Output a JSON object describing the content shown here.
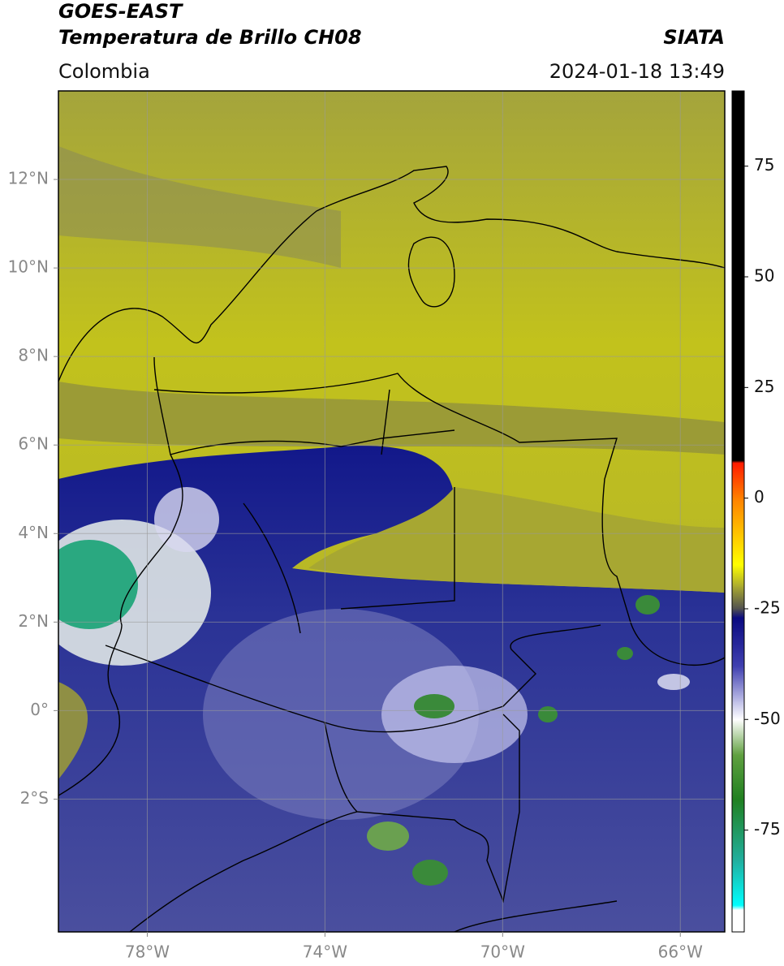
{
  "header": {
    "title": "GOES-EAST",
    "subtitle": "Temperatura de Brillo CH08",
    "source": "SIATA",
    "region": "Colombia",
    "datetime": "2024-01-18 13:49"
  },
  "map": {
    "xlim": [
      -80,
      -65
    ],
    "ylim": [
      -5,
      14
    ],
    "grid": true,
    "xticks": [
      {
        "value": -78,
        "label": "78°W"
      },
      {
        "value": -74,
        "label": "74°W"
      },
      {
        "value": -70,
        "label": "70°W"
      },
      {
        "value": -66,
        "label": "66°W"
      }
    ],
    "yticks": [
      {
        "value": 12,
        "label": "12°N"
      },
      {
        "value": 10,
        "label": "10°N"
      },
      {
        "value": 8,
        "label": "8°N"
      },
      {
        "value": 6,
        "label": "6°N"
      },
      {
        "value": 4,
        "label": "4°N"
      },
      {
        "value": 2,
        "label": "2°N"
      },
      {
        "value": 0,
        "label": "0°"
      },
      {
        "value": -2,
        "label": "2°S"
      }
    ]
  },
  "colorbar": {
    "lim": [
      -98,
      92
    ],
    "ticks": [
      75,
      50,
      25,
      0,
      -25,
      -50,
      -75
    ],
    "stops": [
      {
        "value": 92,
        "color": "#000000"
      },
      {
        "value": 8.5,
        "color": "#000000"
      },
      {
        "value": 8,
        "color": "#ff1a00"
      },
      {
        "value": 0,
        "color": "#ff8000"
      },
      {
        "value": -15,
        "color": "#ffff00"
      },
      {
        "value": -20,
        "color": "#a8a830"
      },
      {
        "value": -25,
        "color": "#505050"
      },
      {
        "value": -27,
        "color": "#0a0a80"
      },
      {
        "value": -38,
        "color": "#4040b0"
      },
      {
        "value": -46,
        "color": "#c0c0e8"
      },
      {
        "value": -50,
        "color": "#ffffff"
      },
      {
        "value": -58,
        "color": "#60a040"
      },
      {
        "value": -68,
        "color": "#208020"
      },
      {
        "value": -82,
        "color": "#20b0a0"
      },
      {
        "value": -92,
        "color": "#00ffff"
      },
      {
        "value": -93,
        "color": "#ffffff"
      },
      {
        "value": -98,
        "color": "#ffffff"
      }
    ]
  }
}
